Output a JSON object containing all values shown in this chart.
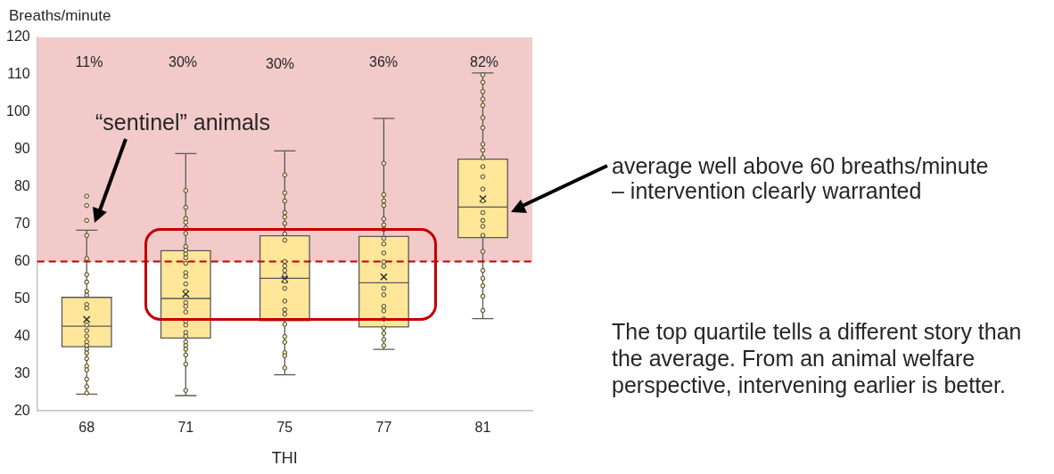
{
  "chart_data": {
    "type": "box",
    "ylabel": "Breaths/minute",
    "xlabel": "THI",
    "categories": [
      "68",
      "71",
      "75",
      "77",
      "81"
    ],
    "ylim": [
      20,
      120
    ],
    "yticks": [
      20,
      30,
      40,
      50,
      60,
      70,
      80,
      90,
      100,
      110,
      120
    ],
    "grid": false,
    "marker": "circle",
    "series": [
      {
        "type": "box",
        "color": "#ffe699",
        "boxes": [
          {
            "low": 24.5,
            "q1": 37.2,
            "median": 42.7,
            "q3": 50.4,
            "high": 68.4,
            "mean": 44.5,
            "outliers": [
              71,
              75,
              77.5
            ]
          },
          {
            "low": 24.1,
            "q1": 39.5,
            "median": 50.1,
            "q3": 62.9,
            "high": 88.9,
            "mean": 51.3
          },
          {
            "low": 29.7,
            "q1": 44.2,
            "median": 55.5,
            "q3": 66.9,
            "high": 89.6,
            "mean": 55.2
          },
          {
            "low": 36.5,
            "q1": 42.5,
            "median": 54.3,
            "q3": 66.7,
            "high": 98.3,
            "mean": 55.9
          },
          {
            "low": 44.7,
            "q1": 66.4,
            "median": 74.6,
            "q3": 87.4,
            "high": 110.5,
            "mean": 76.8
          }
        ]
      },
      {
        "type": "scatter",
        "color": "#404040",
        "x": [
          "68",
          "68",
          "68",
          "68",
          "68",
          "68",
          "68",
          "68",
          "68",
          "68",
          "68",
          "68",
          "68",
          "68",
          "68",
          "68",
          "68",
          "68",
          "68",
          "68",
          "68",
          "71",
          "71",
          "71",
          "71",
          "71",
          "71",
          "71",
          "71",
          "71",
          "71",
          "71",
          "71",
          "71",
          "71",
          "71",
          "71",
          "71",
          "71",
          "71",
          "71",
          "71",
          "71",
          "71",
          "71",
          "71",
          "71",
          "71",
          "71",
          "75",
          "75",
          "75",
          "75",
          "75",
          "75",
          "75",
          "75",
          "75",
          "75",
          "75",
          "75",
          "75",
          "75",
          "75",
          "75",
          "75",
          "75",
          "75",
          "75",
          "75",
          "75",
          "75",
          "77",
          "77",
          "77",
          "77",
          "77",
          "77",
          "77",
          "77",
          "77",
          "77",
          "77",
          "77",
          "77",
          "77",
          "77",
          "77",
          "77",
          "77",
          "77",
          "77",
          "77",
          "81",
          "81",
          "81",
          "81",
          "81",
          "81",
          "81",
          "81",
          "81",
          "81",
          "81",
          "81",
          "81",
          "81",
          "81",
          "81",
          "81",
          "81",
          "81",
          "81",
          "81",
          "81",
          "81",
          "81"
        ],
        "values": [
          67,
          60.8,
          56.5,
          54.5,
          52,
          51,
          48.5,
          47.5,
          43,
          41.5,
          40,
          38.5,
          37.5,
          36.5,
          35.5,
          34,
          32,
          31,
          28.5,
          26.5,
          24.8,
          79,
          74.5,
          71.5,
          70.5,
          69,
          67.5,
          64,
          63,
          62,
          61,
          59.5,
          57,
          56,
          54,
          52,
          49,
          48,
          46.5,
          44,
          43,
          41,
          40,
          38.5,
          37.5,
          36.5,
          35,
          32.5,
          25.5,
          83.2,
          78.4,
          76.2,
          73.1,
          71.9,
          70.2,
          67.4,
          65.7,
          60,
          58.8,
          57.6,
          56.4,
          54.7,
          52.8,
          49.4,
          47.1,
          45.9,
          43.2,
          39.9,
          38.4,
          35.6,
          34.8,
          31.5,
          86.3,
          77.9,
          76.2,
          75,
          71.4,
          69.8,
          68.6,
          66.2,
          64.7,
          62.3,
          59.9,
          58.7,
          52.8,
          51.1,
          48,
          46.8,
          44.6,
          42.2,
          40.8,
          39.1,
          37.5,
          110,
          108,
          105.5,
          103.5,
          101.8,
          98.5,
          95.8,
          91.4,
          89.8,
          87.8,
          85.4,
          82.7,
          79.4,
          76.2,
          73.1,
          71,
          69.4,
          67,
          62.7,
          57.6,
          55.5,
          53.5,
          50.7,
          46.9
        ]
      }
    ],
    "ref_lines": [
      {
        "axis": "y",
        "value": 60,
        "color": "#c00000",
        "line_style": "dashed"
      }
    ],
    "bands": [
      {
        "axis": "y",
        "from": 60,
        "to": 120,
        "color": "#f2caca"
      }
    ],
    "annotations": [
      "11%",
      "30%",
      "30%",
      "36%",
      "82%",
      "“sentinel” animals",
      "average well above 60 breaths/minute – intervention clearly warranted",
      "The top quartile tells a different story than the average. From an animal welfare perspective, intervening earlier is better."
    ]
  }
}
